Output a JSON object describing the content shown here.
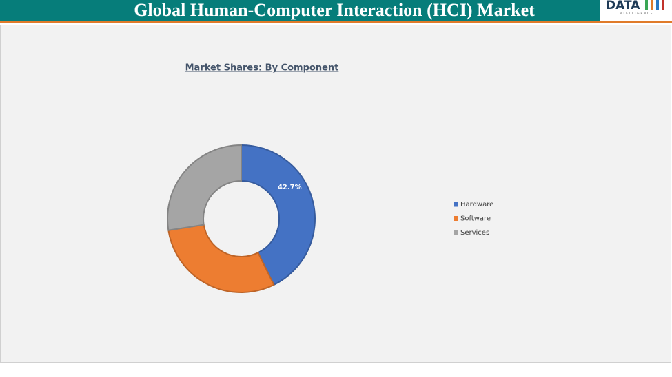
{
  "header": {
    "title": "Global Human-Computer Interaction (HCI)  Market",
    "logo": "DATA",
    "logo_tagline": "INTELLIGENCE"
  },
  "chart_data": {
    "type": "donut",
    "title": "Market Shares: By Component",
    "categories": [
      "Hardware",
      "Software",
      "Services"
    ],
    "values": [
      42.7,
      29.8,
      27.5
    ],
    "value_labels": [
      "42.7%",
      null,
      null
    ],
    "colors": [
      "#4472c4",
      "#ed7d31",
      "#a5a5a5"
    ],
    "legend": "right"
  }
}
